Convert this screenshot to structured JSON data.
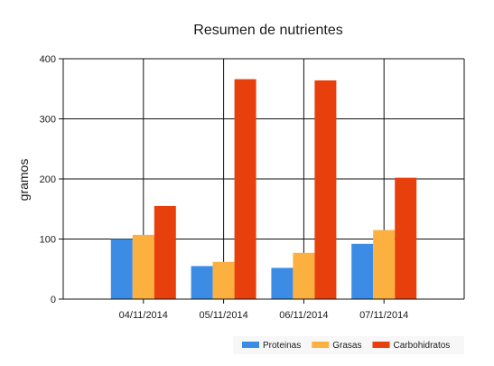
{
  "chart_data": {
    "type": "bar",
    "title": "Resumen de nutrientes",
    "xlabel": "",
    "ylabel": "gramos",
    "categories": [
      "04/11/2014",
      "05/11/2014",
      "06/11/2014",
      "07/11/2014"
    ],
    "series": [
      {
        "name": "Proteinas",
        "color": "#3c8ce6",
        "values": [
          100,
          55,
          52,
          92
        ]
      },
      {
        "name": "Grasas",
        "color": "#fbb040",
        "values": [
          107,
          62,
          77,
          115
        ]
      },
      {
        "name": "Carbohidratos",
        "color": "#e8400c",
        "values": [
          155,
          366,
          364,
          202
        ]
      }
    ],
    "ylim": [
      0,
      400
    ],
    "yticks": [
      0,
      100,
      200,
      300,
      400
    ],
    "grid": true,
    "legend_position": "bottom-right"
  }
}
